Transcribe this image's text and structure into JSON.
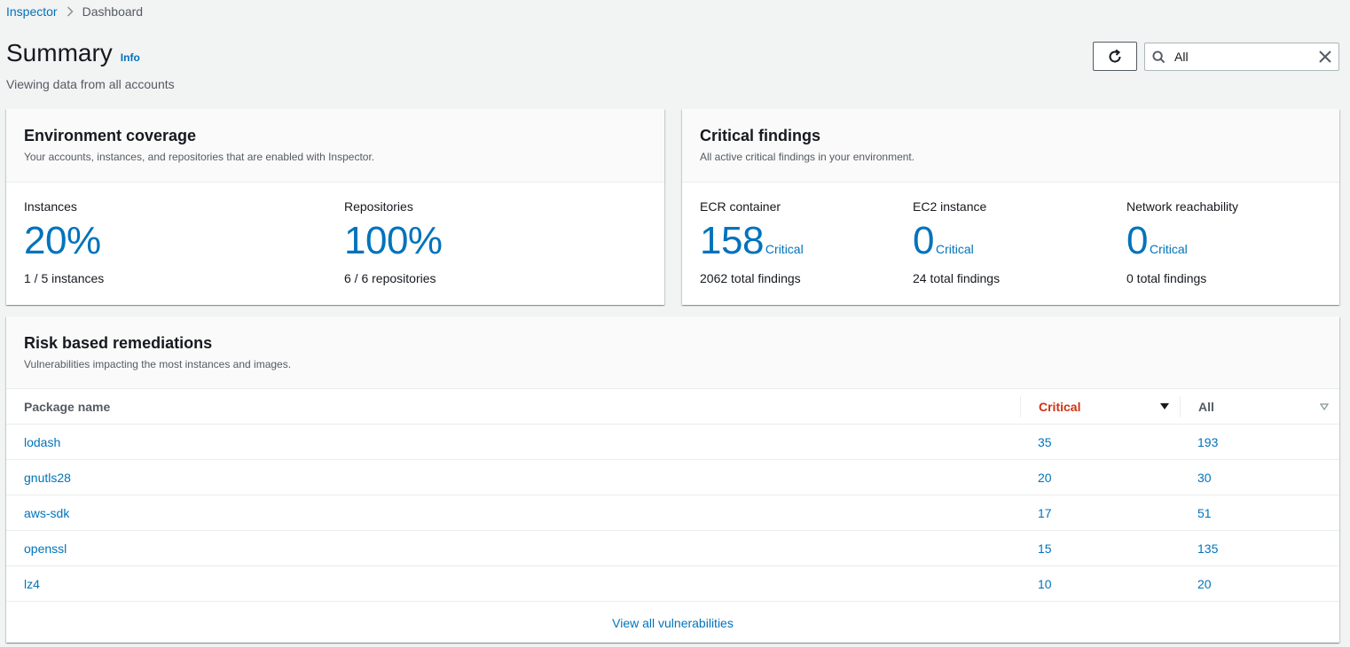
{
  "breadcrumb": {
    "root": "Inspector",
    "current": "Dashboard"
  },
  "header": {
    "title": "Summary",
    "info": "Info",
    "subtitle": "Viewing data from all accounts",
    "filter_value": "All"
  },
  "coverage": {
    "title": "Environment coverage",
    "description": "Your accounts, instances, and repositories that are enabled with Inspector.",
    "metrics": [
      {
        "label": "Instances",
        "value": "20%",
        "sub": "1 / 5 instances"
      },
      {
        "label": "Repositories",
        "value": "100%",
        "sub": "6 / 6 repositories"
      }
    ]
  },
  "critical": {
    "title": "Critical findings",
    "description": "All active critical findings in your environment.",
    "metrics": [
      {
        "label": "ECR container",
        "value": "158",
        "suffix": "Critical",
        "sub": "2062 total findings"
      },
      {
        "label": "EC2 instance",
        "value": "0",
        "suffix": "Critical",
        "sub": "24 total findings"
      },
      {
        "label": "Network reachability",
        "value": "0",
        "suffix": "Critical",
        "sub": "0 total findings"
      }
    ]
  },
  "remediations": {
    "title": "Risk based remediations",
    "description": "Vulnerabilities impacting the most instances and images.",
    "columns": {
      "package": "Package name",
      "critical": "Critical",
      "all": "All"
    },
    "rows": [
      {
        "package": "lodash",
        "critical": "35",
        "all": "193"
      },
      {
        "package": "gnutls28",
        "critical": "20",
        "all": "30"
      },
      {
        "package": "aws-sdk",
        "critical": "17",
        "all": "51"
      },
      {
        "package": "openssl",
        "critical": "15",
        "all": "135"
      },
      {
        "package": "lz4",
        "critical": "10",
        "all": "20"
      }
    ],
    "view_all": "View all vulnerabilities"
  },
  "colors": {
    "link": "#0073bb",
    "critical": "#d13212",
    "background": "#f2f3f3"
  },
  "icons": {
    "refresh": "refresh-icon",
    "search": "search-icon",
    "clear": "close-icon",
    "sort_desc": "caret-down-icon",
    "sort_none": "caret-down-outline-icon"
  }
}
